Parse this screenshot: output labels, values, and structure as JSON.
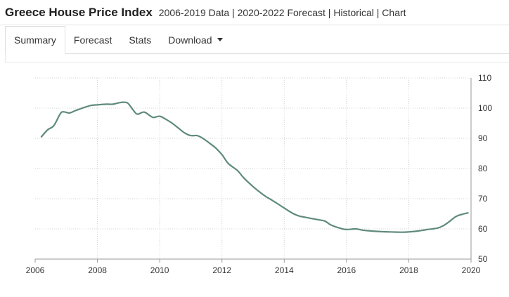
{
  "header": {
    "title": "Greece House Price Index",
    "subtitle": "2006-2019 Data | 2020-2022 Forecast | Historical | Chart"
  },
  "tabs": [
    {
      "label": "Summary",
      "active": true
    },
    {
      "label": "Forecast",
      "active": false
    },
    {
      "label": "Stats",
      "active": false
    },
    {
      "label": "Download",
      "active": false,
      "dropdown": true
    }
  ],
  "colors": {
    "line": "#5f8a7e",
    "grid": "#d3d3d3",
    "axis": "#999999"
  },
  "chart_data": {
    "type": "line",
    "xlim": [
      2006,
      2020
    ],
    "ylim": [
      50,
      110
    ],
    "x_ticks": [
      2006,
      2008,
      2010,
      2012,
      2014,
      2016,
      2018,
      2020
    ],
    "y_ticks": [
      50,
      60,
      70,
      80,
      90,
      100,
      110
    ],
    "y_axis_side": "right",
    "grid": true,
    "legend": "none",
    "series": [
      {
        "points": [
          [
            2006.2,
            90.5
          ],
          [
            2006.4,
            92.8
          ],
          [
            2006.6,
            94.2
          ],
          [
            2006.8,
            98.0
          ],
          [
            2006.9,
            98.8
          ],
          [
            2007.1,
            98.4
          ],
          [
            2007.3,
            99.2
          ],
          [
            2007.6,
            100.3
          ],
          [
            2007.8,
            100.9
          ],
          [
            2008.0,
            101.1
          ],
          [
            2008.3,
            101.3
          ],
          [
            2008.5,
            101.3
          ],
          [
            2008.7,
            101.8
          ],
          [
            2008.9,
            101.9
          ],
          [
            2009.0,
            101.4
          ],
          [
            2009.2,
            98.7
          ],
          [
            2009.3,
            98.0
          ],
          [
            2009.5,
            98.7
          ],
          [
            2009.7,
            97.4
          ],
          [
            2009.8,
            96.9
          ],
          [
            2010.0,
            97.3
          ],
          [
            2010.2,
            96.3
          ],
          [
            2010.4,
            95.0
          ],
          [
            2010.6,
            93.4
          ],
          [
            2010.8,
            91.8
          ],
          [
            2011.0,
            90.9
          ],
          [
            2011.2,
            90.9
          ],
          [
            2011.4,
            89.9
          ],
          [
            2011.6,
            88.4
          ],
          [
            2011.8,
            86.8
          ],
          [
            2012.0,
            84.6
          ],
          [
            2012.2,
            81.7
          ],
          [
            2012.5,
            79.3
          ],
          [
            2012.7,
            76.9
          ],
          [
            2013.0,
            74.0
          ],
          [
            2013.2,
            72.3
          ],
          [
            2013.4,
            70.8
          ],
          [
            2013.7,
            68.9
          ],
          [
            2014.0,
            66.9
          ],
          [
            2014.3,
            65.0
          ],
          [
            2014.5,
            64.2
          ],
          [
            2014.7,
            63.8
          ],
          [
            2015.0,
            63.2
          ],
          [
            2015.3,
            62.6
          ],
          [
            2015.5,
            61.3
          ],
          [
            2015.8,
            60.2
          ],
          [
            2016.0,
            59.8
          ],
          [
            2016.3,
            60.0
          ],
          [
            2016.5,
            59.6
          ],
          [
            2016.8,
            59.3
          ],
          [
            2017.1,
            59.1
          ],
          [
            2017.4,
            59.0
          ],
          [
            2017.8,
            58.9
          ],
          [
            2018.0,
            59.0
          ],
          [
            2018.3,
            59.3
          ],
          [
            2018.6,
            59.8
          ],
          [
            2018.9,
            60.2
          ],
          [
            2019.1,
            61.0
          ],
          [
            2019.3,
            62.4
          ],
          [
            2019.5,
            64.0
          ],
          [
            2019.7,
            64.8
          ],
          [
            2019.9,
            65.3
          ]
        ]
      }
    ]
  }
}
